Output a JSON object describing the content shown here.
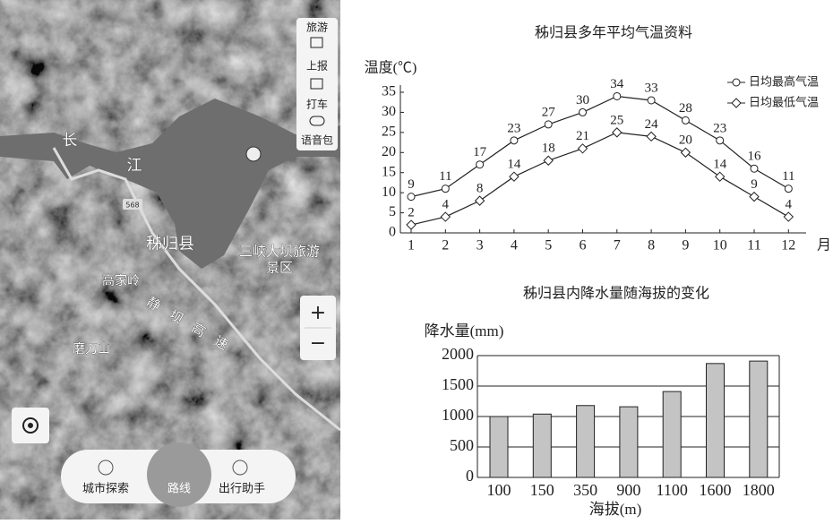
{
  "map": {
    "side_menu": [
      "旅游",
      "上报",
      "打车",
      "语音包"
    ],
    "place_labels": [
      "长",
      "江",
      "秭归县",
      "三峡大坝旅游",
      "景区",
      "高家岭",
      "磨刀山"
    ],
    "road_label": "静坝高速",
    "road_shield": "568",
    "zoom": [
      "+",
      "−"
    ],
    "bottom_bar": [
      "城市探索",
      "路线",
      "出行助手"
    ]
  },
  "chart_data": [
    {
      "type": "line",
      "title": "秭归县多年平均气温资料",
      "y_label": "温度(℃)",
      "x_label": "月",
      "categories": [
        "1",
        "2",
        "3",
        "4",
        "5",
        "6",
        "7",
        "8",
        "9",
        "10",
        "11",
        "12"
      ],
      "series": [
        {
          "name": "日均最高气温",
          "color": "#222222",
          "marker": "circle",
          "values": [
            9,
            11,
            17,
            23,
            27,
            30,
            34,
            33,
            28,
            23,
            16,
            11
          ]
        },
        {
          "name": "日均最低气温",
          "color": "#222222",
          "marker": "diamond",
          "values": [
            2,
            4,
            8,
            14,
            18,
            21,
            25,
            24,
            20,
            14,
            9,
            4
          ]
        }
      ],
      "ylim": [
        0,
        35
      ],
      "yticks": [
        0,
        5,
        10,
        15,
        20,
        25,
        30,
        35
      ],
      "legend": "top-right"
    },
    {
      "type": "bar",
      "title": "秭归县内降水量随海拔的变化",
      "y_label": "降水量(mm)",
      "x_label": "海拔(m)",
      "categories": [
        "100",
        "150",
        "350",
        "900",
        "1100",
        "1600",
        "1800"
      ],
      "values": [
        1000,
        1040,
        1180,
        1160,
        1410,
        1870,
        1910
      ],
      "color": "#c4c4c4",
      "ylim": [
        0,
        2000
      ],
      "yticks": [
        0,
        500,
        1000,
        1500,
        2000
      ],
      "grid": true
    }
  ]
}
